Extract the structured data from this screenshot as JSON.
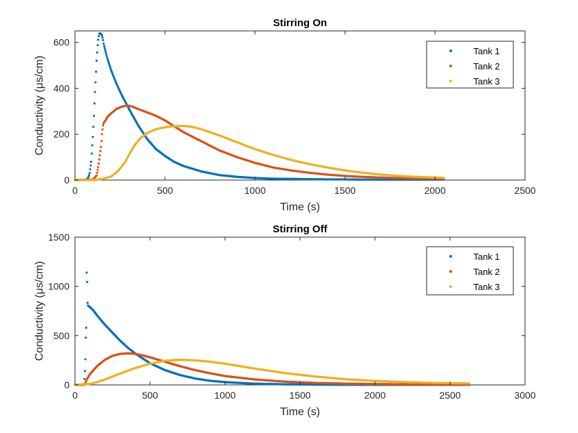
{
  "chart_data": [
    {
      "type": "scatter",
      "title": "Stirring On",
      "xlabel": "Time (s)",
      "ylabel": "Conductivity (μs/cm)",
      "xlim": [
        0,
        2500
      ],
      "ylim": [
        0,
        650
      ],
      "xticks": [
        0,
        500,
        1000,
        1500,
        2000,
        2500
      ],
      "yticks": [
        0,
        200,
        400,
        600
      ],
      "legend_position": "top-right",
      "grid": false,
      "series": [
        {
          "name": "Tank 1",
          "color": "#0072BD",
          "x": [
            0,
            50,
            70,
            80,
            90,
            100,
            105,
            110,
            115,
            120,
            125,
            130,
            135,
            140,
            145,
            150,
            155,
            160,
            170,
            180,
            200,
            230,
            260,
            300,
            350,
            400,
            450,
            500,
            550,
            600,
            700,
            800,
            900,
            1000,
            1100,
            1200,
            1300,
            1400,
            1500,
            1600,
            1700,
            1800,
            1900,
            2000,
            2050
          ],
          "y": [
            0,
            0,
            5,
            25,
            80,
            200,
            280,
            370,
            440,
            520,
            580,
            620,
            638,
            640,
            636,
            630,
            615,
            590,
            560,
            530,
            480,
            420,
            370,
            310,
            240,
            180,
            135,
            105,
            80,
            62,
            38,
            22,
            14,
            9,
            6,
            5,
            4,
            3,
            3,
            2,
            2,
            2,
            2,
            2,
            2
          ]
        },
        {
          "name": "Tank 2",
          "color": "#D95319",
          "x": [
            0,
            100,
            120,
            130,
            140,
            145,
            150,
            155,
            160,
            170,
            180,
            200,
            230,
            260,
            290,
            320,
            350,
            400,
            450,
            500,
            550,
            600,
            700,
            800,
            900,
            1000,
            1100,
            1200,
            1300,
            1400,
            1500,
            1600,
            1700,
            1800,
            1900,
            2000,
            2050
          ],
          "y": [
            0,
            2,
            20,
            60,
            120,
            150,
            200,
            235,
            250,
            260,
            275,
            290,
            310,
            320,
            325,
            320,
            310,
            295,
            280,
            260,
            235,
            210,
            170,
            130,
            100,
            75,
            55,
            42,
            32,
            24,
            18,
            14,
            11,
            9,
            7,
            6,
            6
          ]
        },
        {
          "name": "Tank 3",
          "color": "#EDB120",
          "x": [
            0,
            100,
            150,
            200,
            240,
            260,
            280,
            300,
            330,
            360,
            400,
            450,
            500,
            550,
            600,
            650,
            700,
            800,
            900,
            1000,
            1100,
            1200,
            1300,
            1400,
            1500,
            1600,
            1700,
            1800,
            1900,
            2000,
            2050
          ],
          "y": [
            0,
            0,
            5,
            15,
            40,
            60,
            80,
            110,
            150,
            180,
            205,
            222,
            230,
            235,
            236,
            232,
            222,
            195,
            165,
            135,
            110,
            88,
            70,
            55,
            42,
            32,
            24,
            18,
            14,
            11,
            10
          ]
        }
      ]
    },
    {
      "type": "scatter",
      "title": "Stirring Off",
      "xlabel": "Time (s)",
      "ylabel": "Conductivity (μs/cm)",
      "xlim": [
        0,
        3000
      ],
      "ylim": [
        0,
        1500
      ],
      "xticks": [
        0,
        500,
        1000,
        1500,
        2000,
        2500,
        3000
      ],
      "yticks": [
        0,
        500,
        1000,
        1500
      ],
      "legend_position": "top-right",
      "grid": false,
      "series": [
        {
          "name": "Tank 1",
          "color": "#0072BD",
          "x": [
            0,
            60,
            65,
            70,
            72,
            75,
            78,
            80,
            82,
            85,
            90,
            100,
            120,
            150,
            200,
            250,
            300,
            350,
            400,
            450,
            500,
            600,
            700,
            800,
            900,
            1000,
            1200,
            1400,
            1600,
            1800,
            2000,
            2200,
            2400,
            2630
          ],
          "y": [
            0,
            0,
            100,
            300,
            480,
            580,
            1140,
            1210,
            880,
            810,
            800,
            790,
            760,
            700,
            610,
            530,
            450,
            380,
            320,
            270,
            220,
            150,
            100,
            65,
            42,
            28,
            12,
            6,
            3,
            2,
            1,
            1,
            1,
            1
          ]
        },
        {
          "name": "Tank 2",
          "color": "#D95319",
          "x": [
            0,
            60,
            70,
            80,
            100,
            150,
            200,
            250,
            300,
            350,
            400,
            450,
            500,
            600,
            700,
            800,
            900,
            1000,
            1200,
            1400,
            1600,
            1800,
            2000,
            2200,
            2400,
            2630
          ],
          "y": [
            0,
            2,
            20,
            60,
            110,
            195,
            255,
            295,
            315,
            320,
            315,
            300,
            280,
            235,
            190,
            150,
            118,
            90,
            55,
            33,
            20,
            13,
            9,
            6,
            5,
            4
          ]
        },
        {
          "name": "Tank 3",
          "color": "#EDB120",
          "x": [
            0,
            100,
            150,
            200,
            300,
            400,
            500,
            600,
            700,
            800,
            900,
            1000,
            1100,
            1200,
            1400,
            1600,
            1800,
            2000,
            2200,
            2400,
            2630
          ],
          "y": [
            0,
            10,
            30,
            55,
            115,
            170,
            215,
            245,
            255,
            250,
            235,
            215,
            190,
            165,
            120,
            85,
            58,
            40,
            28,
            20,
            15
          ]
        }
      ]
    }
  ]
}
